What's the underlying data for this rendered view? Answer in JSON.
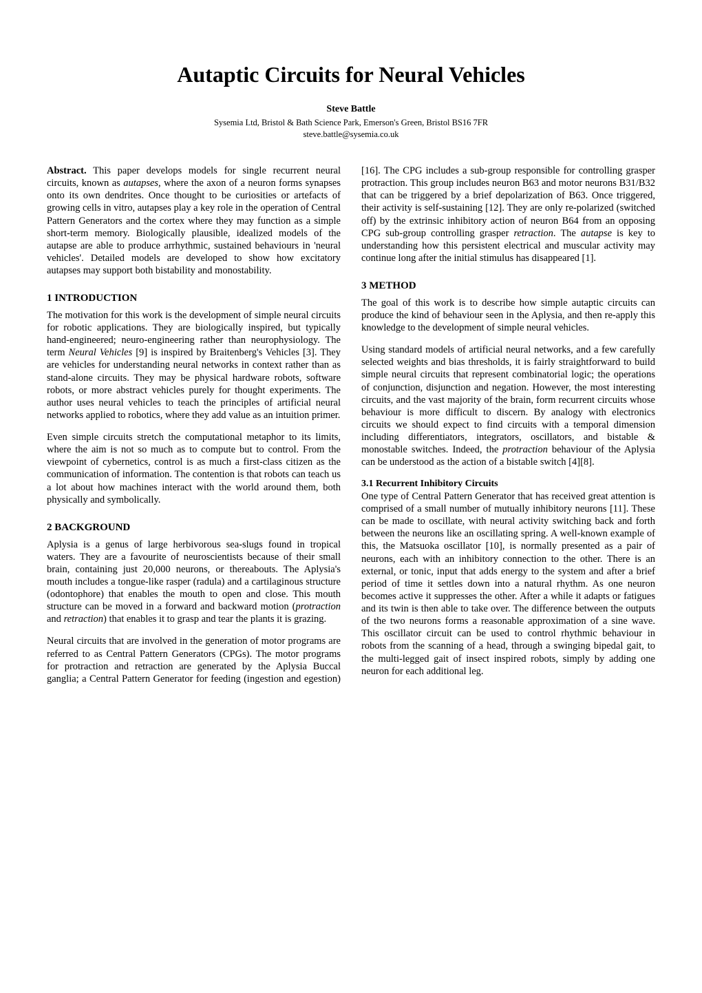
{
  "title": "Autaptic Circuits for Neural Vehicles",
  "author": "Steve Battle",
  "affiliation": "Sysemia Ltd, Bristol & Bath Science Park, Emerson's Green, Bristol BS16 7FR",
  "email": "steve.battle@sysemia.co.uk",
  "abstract_label": "Abstract.",
  "abstract_html": "This paper develops models for single recurrent neural circuits, known as <em>autapses</em>, where the axon of a neuron forms synapses onto its own dendrites. Once thought to be curiosities or artefacts of growing cells in vitro, autapses play a key role in the operation of Central Pattern Generators and the cortex where they may function as a simple short-term memory. Biologically plausible, idealized models of the autapse are able to produce arrhythmic, sustained behaviours in 'neural vehicles'. Detailed models are developed to show how excitatory autapses may support both bistability and monostability.",
  "sections": {
    "s1": {
      "heading": "1 INTRODUCTION",
      "p1_html": "The motivation for this work is the development of simple neural circuits for robotic applications. They are biologically inspired, but typically hand-engineered; neuro-engineering rather than neurophysiology. The term <em>Neural Vehicles</em> [9] is inspired by Braitenberg's Vehicles [3]. They are vehicles for understanding neural networks in context rather than as stand-alone circuits. They may be physical hardware robots, software robots, or more abstract vehicles purely for thought experiments. The author uses neural vehicles to teach the principles of artificial neural networks applied to robotics, where they add value as an intuition primer.",
      "p2_html": "Even simple circuits stretch the computational metaphor to its limits, where the aim is not so much as to compute but to control. From the viewpoint of cybernetics, control is as much a first-class citizen as the communication of information. The contention is that robots can teach us a lot about how machines interact with the world around them, both physically and symbolically."
    },
    "s2": {
      "heading": "2 BACKGROUND",
      "p1_html": "Aplysia is a genus of large herbivorous sea-slugs found in tropical waters. They are a favourite of neuroscientists because of their small brain, containing just 20,000 neurons, or thereabouts. The Aplysia's mouth includes a tongue-like rasper (radula) and a cartilaginous structure (odontophore) that enables the mouth to open and close. This mouth structure can be moved in a forward and backward motion (<em>protraction</em> and <em>retraction</em>) that enables it to grasp and tear the plants it is grazing.",
      "p2_html": "Neural circuits that are involved in the generation of motor programs are referred to as Central Pattern Generators (CPGs). The motor programs for protraction and retraction are generated by the Aplysia Buccal ganglia; a Central Pattern Generator for feeding (ingestion and egestion) [16]. The CPG includes a sub-group responsible for controlling grasper protraction. This group includes neuron B63 and motor neurons B31/B32 that can be triggered by a brief depolarization of B63. Once triggered, their activity is self-sustaining [12]. They are only re-polarized (switched off) by the extrinsic inhibitory action of neuron B64 from an opposing CPG sub-group controlling grasper <em>retraction</em>. The <em>autapse</em> is key to understanding how this persistent electrical and muscular activity may continue long after the initial stimulus has disappeared [1]."
    },
    "s3": {
      "heading": "3 METHOD",
      "p1_html": "The goal of this work is to describe how simple autaptic circuits can produce the kind of behaviour seen in the Aplysia, and then re-apply this knowledge to the development of simple neural vehicles.",
      "p2_html": "Using standard models of artificial neural networks, and a few carefully selected weights and bias thresholds, it is fairly straightforward to build simple neural circuits that represent combinatorial logic; the operations of conjunction, disjunction and negation. However, the most interesting circuits, and the vast majority of the brain, form recurrent circuits whose behaviour is more difficult to discern. By analogy with electronics circuits we should expect to find circuits with a temporal dimension including differentiators, integrators, oscillators, and bistable & monostable switches. Indeed, the <em>protraction</em> behaviour of the Aplysia can be understood as the action of a bistable switch [4][8].",
      "sub1": {
        "heading": "3.1 Recurrent Inhibitory Circuits",
        "p1_html": "One type of Central Pattern Generator that has received great attention is comprised of a small number of mutually inhibitory neurons [11]. These can be made to oscillate, with neural activity switching back and forth between the neurons like an oscillating spring. A well-known example of this, the Matsuoka oscillator [10], is normally presented as a pair of neurons, each with an inhibitory connection to the other. There is an external, or tonic, input that adds energy to the system and after a brief period of time it settles down into a natural rhythm. As one neuron becomes active it suppresses the other. After a while it adapts or fatigues and its twin is then able to take over. The difference between the outputs of the two neurons forms a reasonable approximation of a sine wave. This oscillator circuit can be used to control rhythmic behaviour in robots from the scanning of a head, through a swinging bipedal gait, to the multi-legged gait of insect inspired robots, simply by adding one neuron for each additional leg."
      }
    }
  }
}
